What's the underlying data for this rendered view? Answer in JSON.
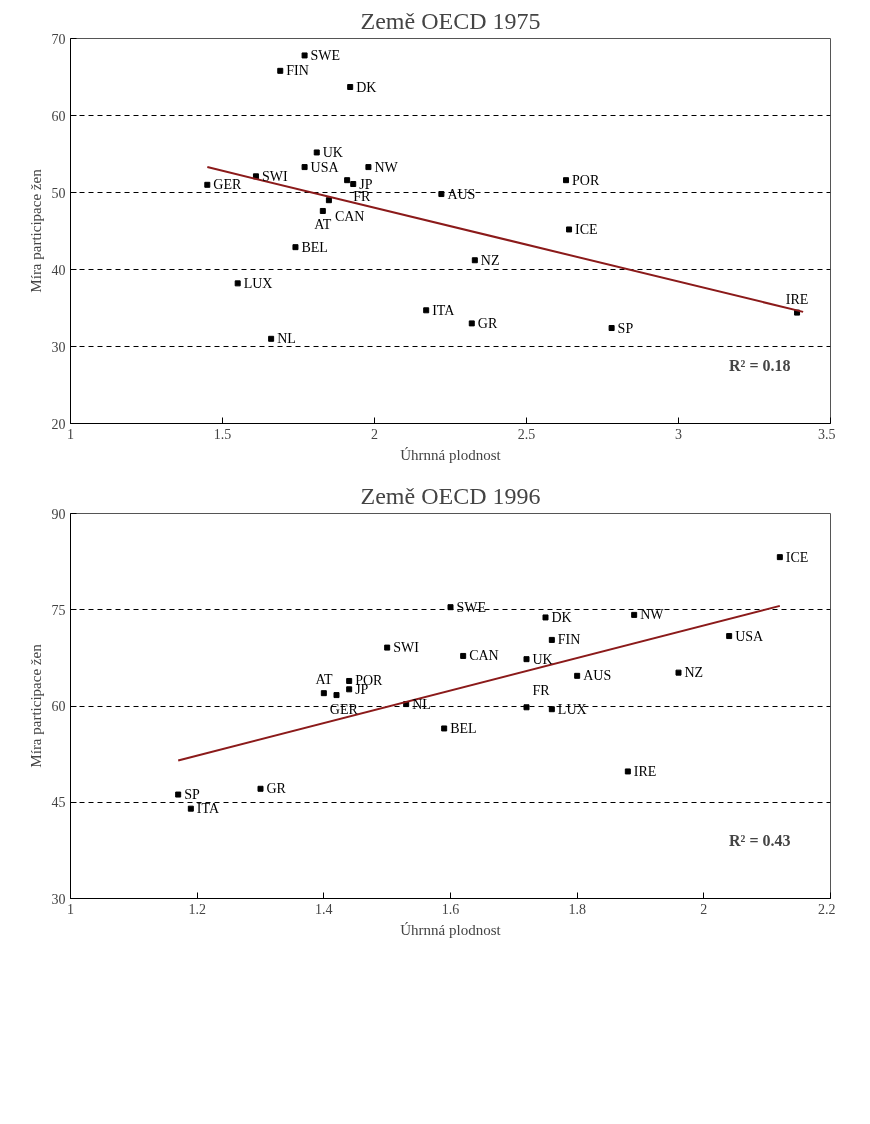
{
  "chart_data": [
    {
      "type": "scatter",
      "title": "Země OECD 1975",
      "xlabel": "Úhrnná plodnost",
      "ylabel": "Míra participace žen",
      "xlim": [
        1,
        3.5
      ],
      "xticks": [
        1,
        1.5,
        2,
        2.5,
        3,
        3.5
      ],
      "ylim": [
        20,
        70
      ],
      "yticks": [
        20,
        30,
        40,
        50,
        60,
        70
      ],
      "grid": "y",
      "series": [
        {
          "marker": "square",
          "color": "#000000",
          "x": [
            1.77,
            1.69,
            1.92,
            1.81,
            1.77,
            1.98,
            1.61,
            1.45,
            1.91,
            1.93,
            1.85,
            1.83,
            2.22,
            1.74,
            1.55,
            2.17,
            1.66,
            2.63,
            2.64,
            2.33,
            2.32,
            2.78,
            3.39
          ],
          "values": [
            67.8,
            65.8,
            63.7,
            55.2,
            53.3,
            53.3,
            52.1,
            51.0,
            51.6,
            51.1,
            49.0,
            47.6,
            49.8,
            42.9,
            38.2,
            34.7,
            31.0,
            51.6,
            45.2,
            41.2,
            33.0,
            32.4,
            34.4
          ]
        },
        {
          "type": "line",
          "marker": "none",
          "color": "#8b1a1a",
          "x": [
            1.45,
            3.41
          ],
          "values": [
            53.3,
            34.5
          ]
        }
      ],
      "annotations": [
        {
          "text": "SWE",
          "x": 1.77,
          "y": 67.8
        },
        {
          "text": "FIN",
          "x": 1.69,
          "y": 65.8
        },
        {
          "text": "DK",
          "x": 1.92,
          "y": 63.7
        },
        {
          "text": "UK",
          "x": 1.81,
          "y": 55.2
        },
        {
          "text": "USA",
          "x": 1.77,
          "y": 53.3
        },
        {
          "text": "NW",
          "x": 1.98,
          "y": 53.3
        },
        {
          "text": "SWI",
          "x": 1.61,
          "y": 52.1
        },
        {
          "text": "GER",
          "x": 1.45,
          "y": 51.0
        },
        {
          "text": "FR",
          "x": 1.91,
          "y": 51.6
        },
        {
          "text": "JP",
          "x": 1.93,
          "y": 51.1
        },
        {
          "text": "CAN",
          "x": 1.85,
          "y": 49.0
        },
        {
          "text": "AT",
          "x": 1.83,
          "y": 47.6
        },
        {
          "text": "AUS",
          "x": 2.22,
          "y": 49.8
        },
        {
          "text": "BEL",
          "x": 1.74,
          "y": 42.9
        },
        {
          "text": "LUX",
          "x": 1.55,
          "y": 38.2
        },
        {
          "text": "ITA",
          "x": 2.17,
          "y": 34.7
        },
        {
          "text": "NL",
          "x": 1.66,
          "y": 31.0
        },
        {
          "text": "POR",
          "x": 2.63,
          "y": 51.6
        },
        {
          "text": "ICE",
          "x": 2.64,
          "y": 45.2
        },
        {
          "text": "NZ",
          "x": 2.33,
          "y": 41.2
        },
        {
          "text": "GR",
          "x": 2.32,
          "y": 33.0
        },
        {
          "text": "SP",
          "x": 2.78,
          "y": 32.4
        },
        {
          "text": "IRE",
          "x": 3.39,
          "y": 34.4
        },
        "R² = 0.18"
      ]
    },
    {
      "type": "scatter",
      "title": "Země OECD 1996",
      "xlabel": "Úhrnná plodnost",
      "ylabel": "Míra participace žen",
      "xlim": [
        1,
        2.2
      ],
      "xticks": [
        1,
        1.2,
        1.4,
        1.6,
        1.8,
        2,
        2.2
      ],
      "ylim": [
        30,
        90
      ],
      "yticks": [
        30,
        45,
        60,
        75,
        90
      ],
      "grid": "y",
      "series": [
        {
          "marker": "square",
          "color": "#000000",
          "x": [
            1.17,
            1.19,
            1.3,
            1.4,
            1.42,
            1.44,
            1.44,
            1.5,
            1.53,
            1.59,
            1.6,
            1.62,
            1.72,
            1.75,
            1.76,
            1.72,
            1.76,
            1.8,
            1.89,
            1.88,
            1.96,
            2.04,
            2.12
          ],
          "values": [
            46.2,
            44.0,
            47.1,
            62.0,
            61.7,
            63.9,
            62.6,
            69.1,
            60.3,
            56.5,
            75.4,
            67.8,
            67.3,
            73.8,
            70.3,
            59.8,
            59.5,
            64.7,
            74.2,
            49.8,
            65.2,
            70.9,
            83.2
          ]
        },
        {
          "type": "line",
          "marker": "none",
          "color": "#8b1a1a",
          "x": [
            1.17,
            2.12
          ],
          "values": [
            51.5,
            75.6
          ]
        }
      ],
      "annotations": [
        {
          "text": "SP",
          "x": 1.17,
          "y": 46.2
        },
        {
          "text": "ITA",
          "x": 1.19,
          "y": 44.0
        },
        {
          "text": "GR",
          "x": 1.3,
          "y": 47.1
        },
        {
          "text": "GER",
          "x": 1.4,
          "y": 62.0
        },
        {
          "text": "AT",
          "x": 1.42,
          "y": 61.7
        },
        {
          "text": "POR",
          "x": 1.44,
          "y": 63.9
        },
        {
          "text": "JP",
          "x": 1.44,
          "y": 62.6
        },
        {
          "text": "SWI",
          "x": 1.5,
          "y": 69.1
        },
        {
          "text": "NL",
          "x": 1.53,
          "y": 60.3
        },
        {
          "text": "BEL",
          "x": 1.59,
          "y": 56.5
        },
        {
          "text": "SWE",
          "x": 1.6,
          "y": 75.4
        },
        {
          "text": "CAN",
          "x": 1.62,
          "y": 67.8
        },
        {
          "text": "UK",
          "x": 1.72,
          "y": 67.3
        },
        {
          "text": "DK",
          "x": 1.75,
          "y": 73.8
        },
        {
          "text": "FIN",
          "x": 1.76,
          "y": 70.3
        },
        {
          "text": "FR",
          "x": 1.72,
          "y": 59.8
        },
        {
          "text": "LUX",
          "x": 1.76,
          "y": 59.5
        },
        {
          "text": "AUS",
          "x": 1.8,
          "y": 64.7
        },
        {
          "text": "NW",
          "x": 1.89,
          "y": 74.2
        },
        {
          "text": "IRE",
          "x": 1.88,
          "y": 49.8
        },
        {
          "text": "NZ",
          "x": 1.96,
          "y": 65.2
        },
        {
          "text": "USA",
          "x": 2.04,
          "y": 70.9
        },
        {
          "text": "ICE",
          "x": 2.12,
          "y": 83.2
        },
        "R² = 0.43"
      ]
    }
  ]
}
